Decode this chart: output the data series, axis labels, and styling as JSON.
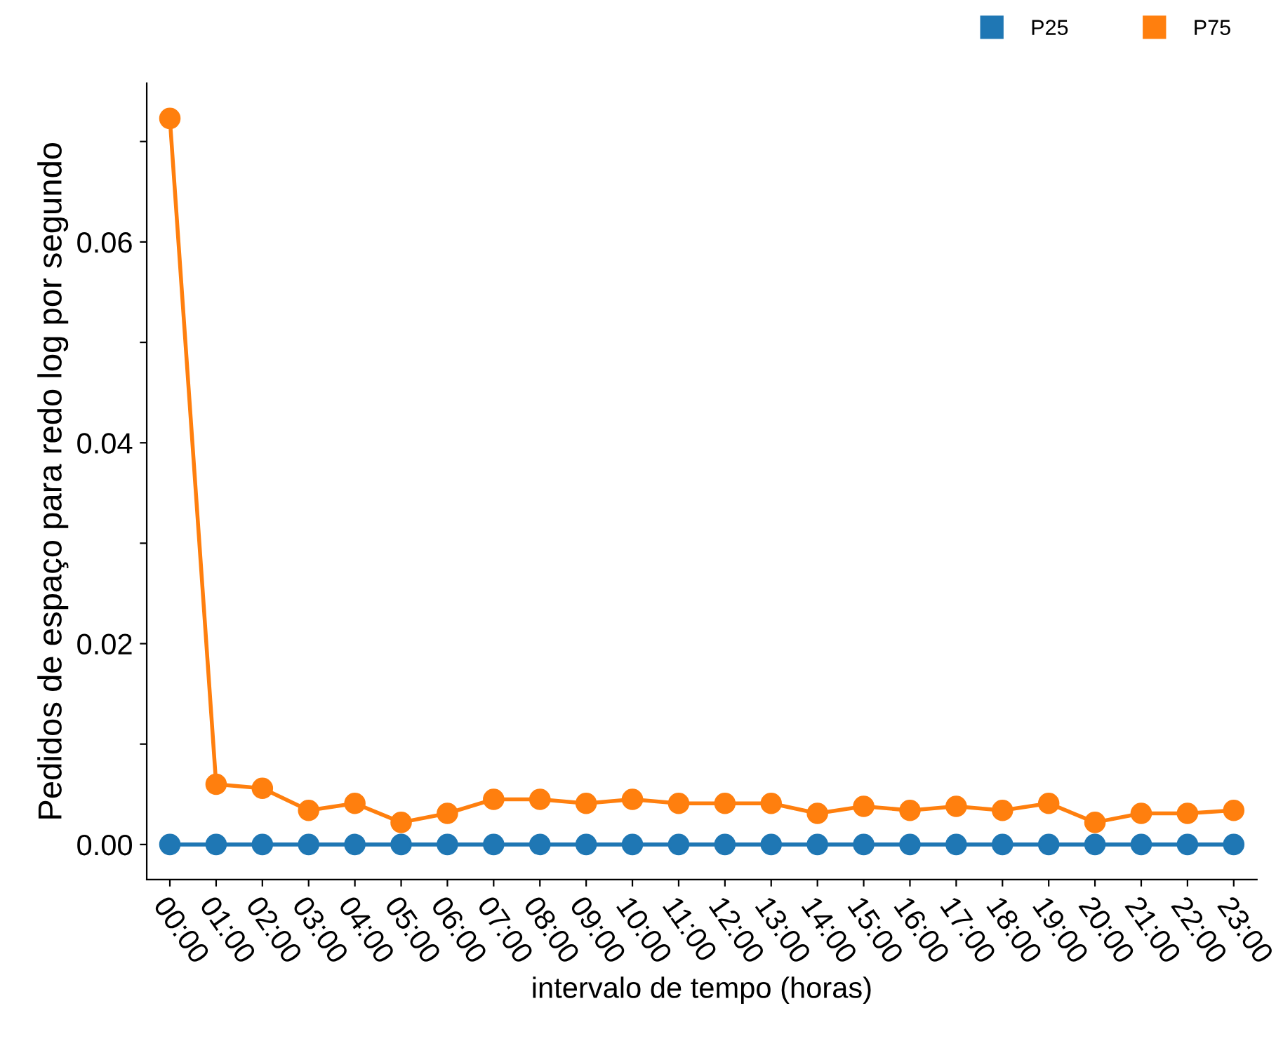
{
  "chart_data": {
    "type": "line",
    "xlabel": "intervalo de tempo (horas)",
    "ylabel": "Pedidos de espaço para redo log por segundo",
    "categories": [
      "00:00",
      "01:00",
      "02:00",
      "03:00",
      "04:00",
      "05:00",
      "06:00",
      "07:00",
      "08:00",
      "09:00",
      "10:00",
      "11:00",
      "12:00",
      "13:00",
      "14:00",
      "15:00",
      "16:00",
      "17:00",
      "18:00",
      "19:00",
      "20:00",
      "21:00",
      "22:00",
      "23:00"
    ],
    "series": [
      {
        "name": "P25",
        "color": "#1f77b4",
        "values": [
          0,
          0,
          0,
          0,
          0,
          0,
          0,
          0,
          0,
          0,
          0,
          0,
          0,
          0,
          0,
          0,
          0,
          0,
          0,
          0,
          0,
          0,
          0,
          0
        ]
      },
      {
        "name": "P75",
        "color": "#ff7f0e",
        "values": [
          0.0723,
          0.006,
          0.0056,
          0.0034,
          0.0041,
          0.0022,
          0.0031,
          0.0045,
          0.0045,
          0.0041,
          0.0045,
          0.0041,
          0.0041,
          0.0041,
          0.0031,
          0.0038,
          0.0034,
          0.0038,
          0.0034,
          0.0041,
          0.0022,
          0.0031,
          0.0031,
          0.0034
        ]
      }
    ],
    "ylim": [
      -0.0035,
      0.0758
    ],
    "yticks": [
      {
        "value": 0,
        "label": "0.00"
      },
      {
        "value": 0.01,
        "label": null
      },
      {
        "value": 0.02,
        "label": "0.02"
      },
      {
        "value": 0.03,
        "label": null
      },
      {
        "value": 0.04,
        "label": "0.04"
      },
      {
        "value": 0.05,
        "label": null
      },
      {
        "value": 0.06,
        "label": "0.06"
      },
      {
        "value": 0.07,
        "label": null
      }
    ],
    "marker": "circle",
    "line_style": "solid",
    "grid": false,
    "legend": "top right"
  }
}
